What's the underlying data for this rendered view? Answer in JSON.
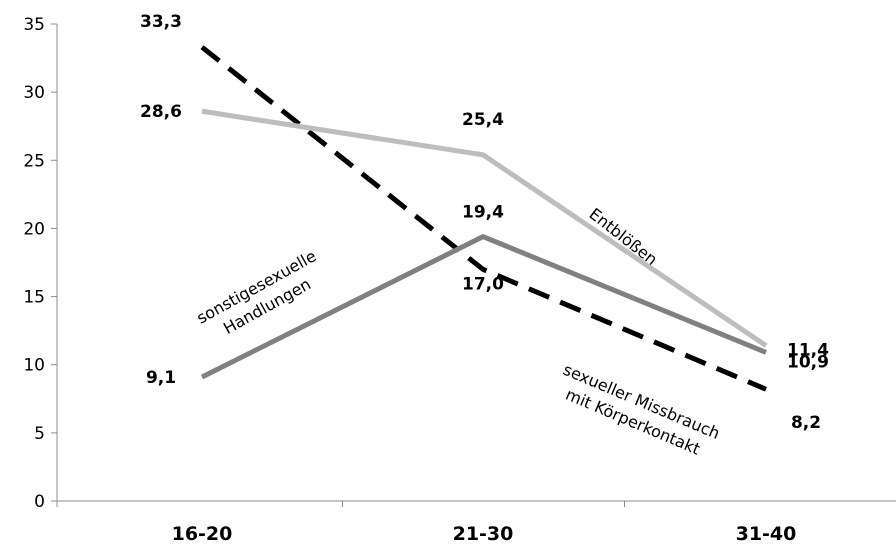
{
  "chart_data": {
    "type": "line",
    "categories": [
      "16-20",
      "21-30",
      "31-40"
    ],
    "ylim": [
      0,
      35
    ],
    "yticks": [
      "0",
      "5",
      "10",
      "15",
      "20",
      "25",
      "30",
      "35"
    ],
    "grid": false,
    "legend": "none",
    "series": [
      {
        "name": "sexueller Missbrauch mit Körperkontakt",
        "label_lines": [
          "sexueller Missbrauch",
          "mit Körperkontakt"
        ],
        "values": [
          33.3,
          17.0,
          8.2
        ],
        "value_labels": [
          "33,3",
          "17,0",
          "8,2"
        ],
        "color": "#000000",
        "dashed": true
      },
      {
        "name": "Entblößen",
        "label_lines": [
          "Entblößen"
        ],
        "values": [
          28.6,
          25.4,
          11.4
        ],
        "value_labels": [
          "28,6",
          "25,4",
          "11,4"
        ],
        "color": "#bdbdbd",
        "dashed": false
      },
      {
        "name": "sonstige sexuelle Handlungen",
        "label_lines": [
          "sonstigesexuelle",
          "Handlungen"
        ],
        "values": [
          9.1,
          19.4,
          10.9
        ],
        "value_labels": [
          "9,1",
          "19,4",
          "10,9"
        ],
        "color": "#808080",
        "dashed": false
      }
    ]
  }
}
